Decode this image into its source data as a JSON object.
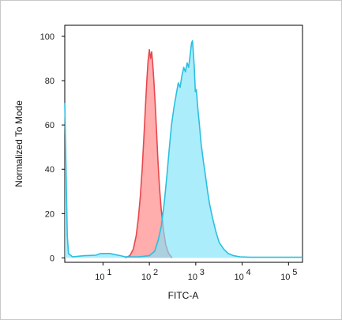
{
  "chart_data": {
    "type": "area",
    "title": "",
    "xlabel": "FITC-A",
    "ylabel": "Normalized To Mode",
    "xscale": "log",
    "xlim": [
      1.5,
      200000
    ],
    "ylim": [
      -2,
      105
    ],
    "yticks": [
      {
        "value": 0,
        "label": "0"
      },
      {
        "value": 20,
        "label": "20"
      },
      {
        "value": 40,
        "label": "40"
      },
      {
        "value": 60,
        "label": "60"
      },
      {
        "value": 80,
        "label": "80"
      },
      {
        "value": 100,
        "label": "100"
      }
    ],
    "xticks": [
      {
        "value": 10,
        "base": "10",
        "exp": "1"
      },
      {
        "value": 100,
        "base": "10",
        "exp": "2"
      },
      {
        "value": 1000,
        "base": "10",
        "exp": "3"
      },
      {
        "value": 10000,
        "base": "10",
        "exp": "4"
      },
      {
        "value": 100000,
        "base": "10",
        "exp": "5"
      }
    ],
    "grid": false,
    "series": [
      {
        "color": "#e8474c",
        "fill": "#ff9f9f",
        "points": [
          [
            30,
            0
          ],
          [
            38,
            1
          ],
          [
            45,
            4
          ],
          [
            52,
            10
          ],
          [
            58,
            18
          ],
          [
            64,
            28
          ],
          [
            70,
            40
          ],
          [
            76,
            54
          ],
          [
            82,
            68
          ],
          [
            88,
            80
          ],
          [
            94,
            89
          ],
          [
            100,
            94
          ],
          [
            106,
            90
          ],
          [
            112,
            93
          ],
          [
            118,
            88
          ],
          [
            125,
            80
          ],
          [
            133,
            70
          ],
          [
            142,
            58
          ],
          [
            152,
            45
          ],
          [
            165,
            32
          ],
          [
            180,
            22
          ],
          [
            200,
            13
          ],
          [
            225,
            6
          ],
          [
            260,
            2
          ],
          [
            310,
            0
          ]
        ]
      },
      {
        "color": "#2bbfe0",
        "fill": "#7fe4fb",
        "points": [
          [
            1.5,
            70
          ],
          [
            1.6,
            40
          ],
          [
            1.7,
            10
          ],
          [
            1.8,
            2
          ],
          [
            2.2,
            0.5
          ],
          [
            4,
            1
          ],
          [
            7,
            1.2
          ],
          [
            9,
            2
          ],
          [
            11,
            2
          ],
          [
            14,
            2
          ],
          [
            18,
            1.5
          ],
          [
            24,
            1
          ],
          [
            30,
            0.5
          ],
          [
            60,
            0.5
          ],
          [
            100,
            1
          ],
          [
            130,
            3
          ],
          [
            155,
            8
          ],
          [
            180,
            14
          ],
          [
            210,
            25
          ],
          [
            240,
            38
          ],
          [
            270,
            50
          ],
          [
            300,
            60
          ],
          [
            340,
            68
          ],
          [
            380,
            74
          ],
          [
            420,
            79
          ],
          [
            460,
            77
          ],
          [
            500,
            82
          ],
          [
            550,
            86
          ],
          [
            600,
            84
          ],
          [
            650,
            88
          ],
          [
            700,
            86
          ],
          [
            760,
            92
          ],
          [
            810,
            97
          ],
          [
            850,
            98
          ],
          [
            890,
            92
          ],
          [
            930,
            86
          ],
          [
            980,
            75
          ],
          [
            1030,
            76
          ],
          [
            1100,
            68
          ],
          [
            1200,
            60
          ],
          [
            1300,
            52
          ],
          [
            1450,
            44
          ],
          [
            1600,
            38
          ],
          [
            1800,
            30
          ],
          [
            2000,
            24
          ],
          [
            2300,
            18
          ],
          [
            2700,
            12
          ],
          [
            3200,
            7
          ],
          [
            4000,
            4
          ],
          [
            5000,
            2
          ],
          [
            6500,
            1
          ],
          [
            9000,
            0.5
          ],
          [
            15000,
            0.3
          ],
          [
            40000,
            0.3
          ],
          [
            200000,
            0.3
          ]
        ]
      }
    ]
  }
}
